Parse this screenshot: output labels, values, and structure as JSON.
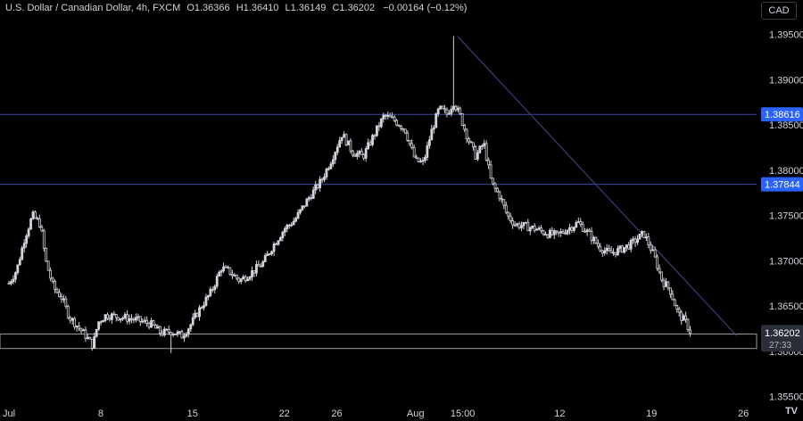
{
  "header": {
    "title": "U.S. Dollar / Canadian Dollar, 4h, FXCM",
    "o_label": "O",
    "o_value": "1.36366",
    "h_label": "H",
    "h_value": "1.36410",
    "l_label": "L",
    "l_value": "1.36149",
    "c_label": "C",
    "c_value": "1.36202",
    "change": "−0.00164 (−0.12%)"
  },
  "currency_button": "CAD",
  "colors": {
    "background": "#000000",
    "candle": "#d1d4dc",
    "level_line": "#3b47a8",
    "trend_line": "#39407a",
    "zone": "#9e9e9e",
    "level_label_bg": "#2962ff",
    "price_label_bg": "#2a2e39"
  },
  "chart_data": {
    "type": "candlestick",
    "y_ticks": [
      "1.39500",
      "1.39000",
      "1.38500",
      "1.38000",
      "1.37500",
      "1.37000",
      "1.36500",
      "1.36000",
      "1.35500"
    ],
    "ylim": [
      1.3545,
      1.399
    ],
    "x_ticks": [
      {
        "label": "Jul",
        "day": 0
      },
      {
        "label": "8",
        "day": 7
      },
      {
        "label": "15",
        "day": 14
      },
      {
        "label": "22",
        "day": 21
      },
      {
        "label": "26",
        "day": 25
      },
      {
        "label": "Aug",
        "day": 31
      },
      {
        "label": "15:00",
        "day": 34.6
      },
      {
        "label": "12",
        "day": 42
      },
      {
        "label": "19",
        "day": 49
      },
      {
        "label": "26",
        "day": 56
      }
    ],
    "horizontal_levels": [
      {
        "price": 1.38616,
        "label": "1.38616"
      },
      {
        "price": 1.37844,
        "label": "1.37844"
      }
    ],
    "support_zone": {
      "low": 1.3603,
      "high": 1.3619
    },
    "current_price": {
      "price": 1.36202,
      "label": "1.36202",
      "countdown": "27:33"
    },
    "trendline": [
      {
        "day": 34.2,
        "price": 1.3948
      },
      {
        "day": 55.5,
        "price": 1.3617
      }
    ],
    "price_path": [
      [
        0,
        1.3675
      ],
      [
        0.6,
        1.369
      ],
      [
        1.2,
        1.3725
      ],
      [
        1.8,
        1.375
      ],
      [
        2.4,
        1.374
      ],
      [
        2.8,
        1.37
      ],
      [
        3.4,
        1.367
      ],
      [
        4.0,
        1.366
      ],
      [
        4.6,
        1.3638
      ],
      [
        5.2,
        1.3628
      ],
      [
        5.8,
        1.3618
      ],
      [
        6.4,
        1.3606
      ],
      [
        6.8,
        1.3632
      ],
      [
        7.4,
        1.364
      ],
      [
        8.4,
        1.3638
      ],
      [
        9.6,
        1.3635
      ],
      [
        10.8,
        1.363
      ],
      [
        11.6,
        1.362
      ],
      [
        12.4,
        1.3622
      ],
      [
        13.2,
        1.3617
      ],
      [
        13.8,
        1.3628
      ],
      [
        14.6,
        1.3648
      ],
      [
        15.4,
        1.3665
      ],
      [
        16.2,
        1.3692
      ],
      [
        16.8,
        1.3688
      ],
      [
        17.6,
        1.3678
      ],
      [
        18.6,
        1.3688
      ],
      [
        19.4,
        1.3698
      ],
      [
        20.2,
        1.3718
      ],
      [
        21.0,
        1.3735
      ],
      [
        21.8,
        1.3745
      ],
      [
        22.8,
        1.3768
      ],
      [
        23.8,
        1.3788
      ],
      [
        24.6,
        1.3812
      ],
      [
        25.4,
        1.384
      ],
      [
        26.2,
        1.382
      ],
      [
        27.0,
        1.3815
      ],
      [
        27.8,
        1.3838
      ],
      [
        28.6,
        1.386
      ],
      [
        29.4,
        1.3855
      ],
      [
        30.2,
        1.3845
      ],
      [
        31.0,
        1.381
      ],
      [
        31.6,
        1.3808
      ],
      [
        32.2,
        1.3842
      ],
      [
        32.8,
        1.3868
      ],
      [
        33.4,
        1.3862
      ],
      [
        33.9,
        1.3875
      ],
      [
        34.4,
        1.386
      ],
      [
        35.0,
        1.3835
      ],
      [
        35.6,
        1.3815
      ],
      [
        36.2,
        1.383
      ],
      [
        36.8,
        1.3785
      ],
      [
        37.4,
        1.3772
      ],
      [
        38.0,
        1.375
      ],
      [
        38.6,
        1.374
      ],
      [
        39.4,
        1.3738
      ],
      [
        40.2,
        1.3735
      ],
      [
        41.0,
        1.373
      ],
      [
        41.8,
        1.3728
      ],
      [
        42.6,
        1.3735
      ],
      [
        43.4,
        1.3742
      ],
      [
        44.2,
        1.373
      ],
      [
        45.0,
        1.3715
      ],
      [
        45.8,
        1.3708
      ],
      [
        46.6,
        1.3712
      ],
      [
        47.4,
        1.3718
      ],
      [
        48.4,
        1.373
      ],
      [
        49.2,
        1.3705
      ],
      [
        49.8,
        1.3678
      ],
      [
        50.4,
        1.3668
      ],
      [
        51.0,
        1.3642
      ],
      [
        51.6,
        1.3632
      ],
      [
        52.0,
        1.362
      ]
    ]
  }
}
